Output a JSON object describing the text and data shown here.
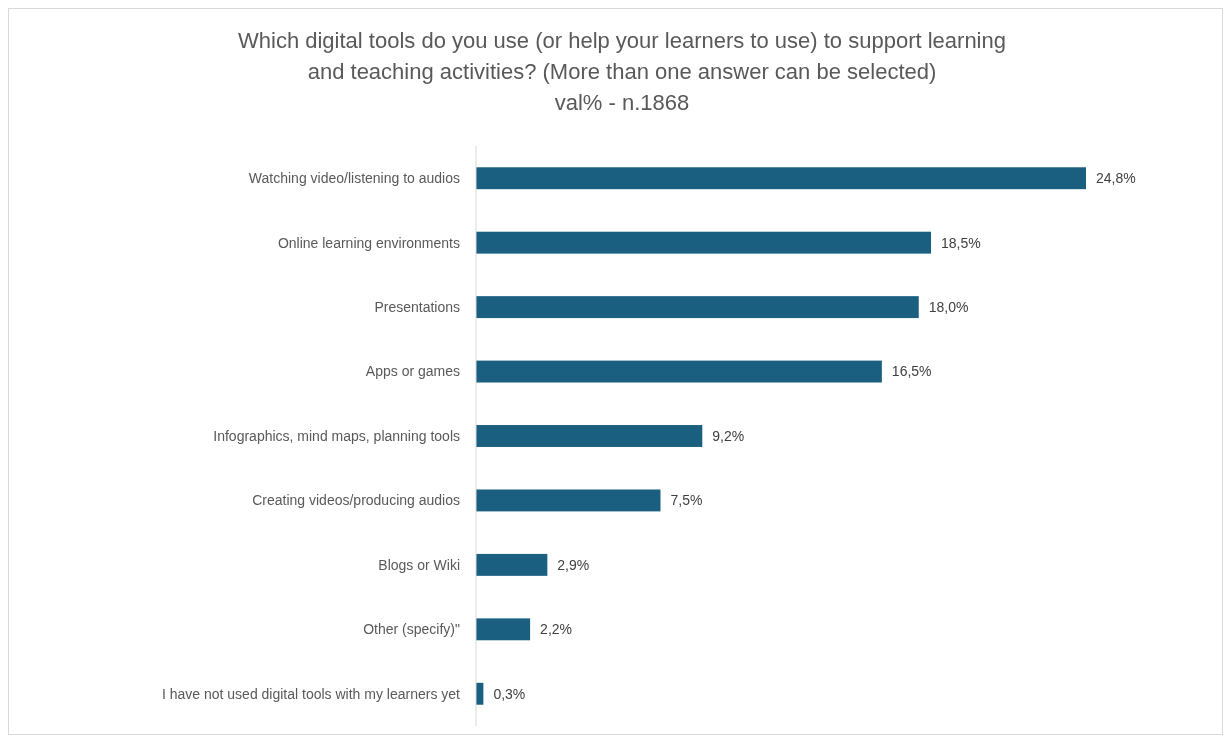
{
  "chart_data": {
    "type": "bar",
    "orientation": "horizontal",
    "title": "Which digital tools do you use (or help your learners to use) to support learning and teaching activities? (More than one answer can be selected)",
    "subtitle": "val% - n.1868",
    "categories": [
      "Watching video/listening to audios",
      "Online learning environments",
      "Presentations",
      "Apps or games",
      "Infographics, mind maps, planning tools",
      "Creating videos/producing audios",
      "Blogs or Wiki",
      "Other (specify)\"",
      "I have not used digital tools with my learners yet"
    ],
    "values": [
      24.8,
      18.5,
      18.0,
      16.5,
      9.2,
      7.5,
      2.9,
      2.2,
      0.3
    ],
    "value_labels": [
      "24,8%",
      "18,5%",
      "18,0%",
      "16,5%",
      "9,2%",
      "7,5%",
      "2,9%",
      "2,2%",
      "0,3%"
    ],
    "color": "#1a5f80",
    "grid": false
  }
}
